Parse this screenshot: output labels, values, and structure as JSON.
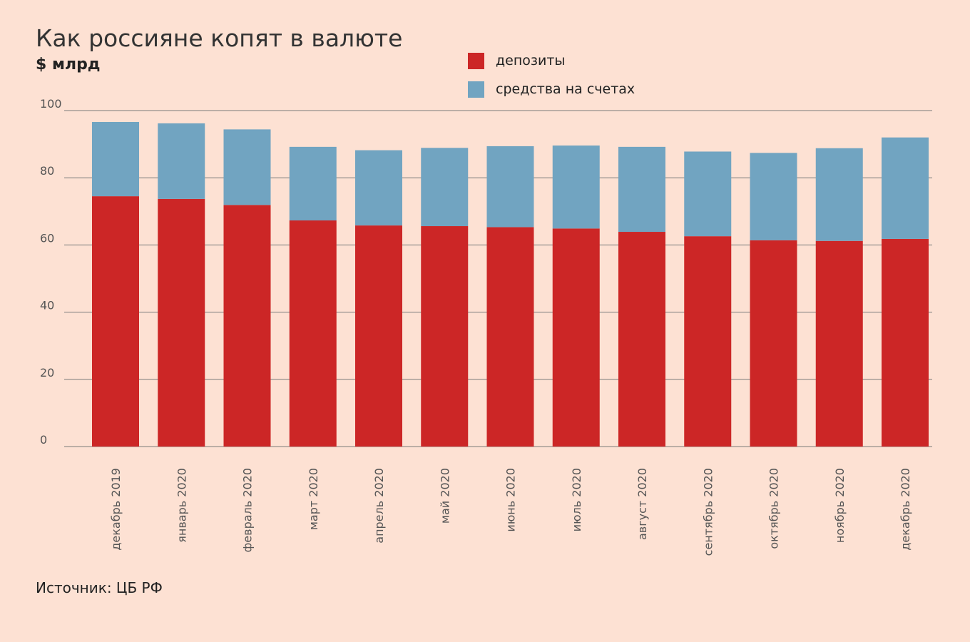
{
  "chart_data": {
    "type": "bar",
    "stacked": true,
    "title": "Как россияне копят в валюте",
    "subtitle": "$ млрд",
    "source": "Источник: ЦБ РФ",
    "categories": [
      "декабрь 2019",
      "январь 2020",
      "февраль 2020",
      "март 2020",
      "апрель 2020",
      "май 2020",
      "июнь 2020",
      "июль 2020",
      "август 2020",
      "сентябрь 2020",
      "октябрь 2020",
      "ноябрь 2020",
      "декабрь 2020"
    ],
    "series": [
      {
        "name": "депозиты",
        "color": "#cc2626",
        "values": [
          74.5,
          73.7,
          71.9,
          67.3,
          65.8,
          65.6,
          65.3,
          64.9,
          63.9,
          62.6,
          61.4,
          61.2,
          61.8
        ]
      },
      {
        "name": "средства на счетах",
        "color": "#71a4c1",
        "values": [
          22.1,
          22.5,
          22.5,
          21.9,
          22.4,
          23.3,
          24.1,
          24.7,
          25.3,
          25.2,
          26.0,
          27.6,
          30.2
        ]
      }
    ],
    "yticks": [
      0,
      20,
      40,
      60,
      80,
      100
    ],
    "ylim": [
      0,
      100
    ],
    "grid": true,
    "legend_position": "top"
  }
}
